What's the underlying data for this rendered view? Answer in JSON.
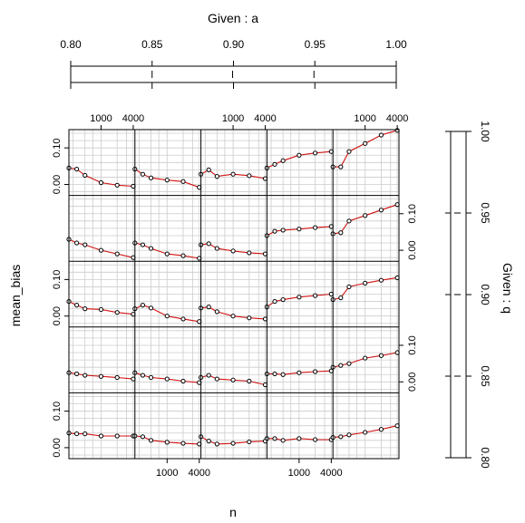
{
  "chart_data": {
    "type": "line",
    "given_a": {
      "label": "Given : a",
      "ticks": [
        0.8,
        0.85,
        0.9,
        0.95,
        1.0
      ],
      "tick_labels": [
        "0.80",
        "0.85",
        "0.90",
        "0.95",
        "1.00"
      ]
    },
    "given_q": {
      "label": "Given : q",
      "ticks": [
        0.8,
        0.85,
        0.9,
        0.95,
        1.0
      ],
      "tick_labels": [
        "0.80",
        "0.85",
        "0.90",
        "0.95",
        "1.00"
      ]
    },
    "xlabel": "n",
    "ylabel": "mean_bias",
    "x_scale": "log",
    "xlim": [
      250,
      4300
    ],
    "ylim": [
      -0.03,
      0.15
    ],
    "x_ticks": [
      1000,
      4000
    ],
    "x_tick_labels": [
      "1000",
      "4000"
    ],
    "y_ticks": [
      0.0,
      0.1
    ],
    "y_tick_labels": [
      "0.00",
      "0.10"
    ],
    "n": [
      250,
      350,
      500,
      1000,
      2000,
      4000
    ],
    "rows": [
      {
        "q_row": 1,
        "panels": [
          [
            0.045,
            0.042,
            0.025,
            0.005,
            -0.002,
            -0.005
          ],
          [
            0.042,
            0.028,
            0.018,
            0.012,
            0.008,
            -0.008
          ],
          [
            0.028,
            0.04,
            0.022,
            0.028,
            0.024,
            0.016
          ],
          [
            0.045,
            0.055,
            0.065,
            0.08,
            0.086,
            0.09
          ],
          [
            0.048,
            0.048,
            0.09,
            0.112,
            0.135,
            0.148
          ]
        ]
      },
      {
        "q_row": 2,
        "panels": [
          [
            0.03,
            0.02,
            0.015,
            0.0,
            -0.01,
            -0.02
          ],
          [
            0.02,
            0.015,
            0.005,
            -0.01,
            -0.015,
            -0.022
          ],
          [
            0.015,
            0.018,
            0.005,
            -0.002,
            -0.007,
            -0.01
          ],
          [
            0.04,
            0.052,
            0.055,
            0.058,
            0.062,
            0.065
          ],
          [
            0.045,
            0.048,
            0.08,
            0.095,
            0.11,
            0.125
          ]
        ]
      },
      {
        "q_row": 3,
        "panels": [
          [
            0.04,
            0.03,
            0.02,
            0.018,
            0.01,
            0.005
          ],
          [
            0.02,
            0.03,
            0.022,
            0.0,
            -0.008,
            -0.015
          ],
          [
            0.022,
            0.025,
            0.012,
            0.0,
            -0.005,
            -0.008
          ],
          [
            0.025,
            0.04,
            0.045,
            0.052,
            0.056,
            0.06
          ],
          [
            0.045,
            0.05,
            0.08,
            0.09,
            0.098,
            0.105
          ]
        ]
      },
      {
        "q_row": 4,
        "panels": [
          [
            0.025,
            0.022,
            0.018,
            0.015,
            0.012,
            0.008
          ],
          [
            0.025,
            0.018,
            0.012,
            0.008,
            0.002,
            -0.002
          ],
          [
            0.012,
            0.018,
            0.008,
            0.005,
            0.002,
            -0.008
          ],
          [
            0.022,
            0.022,
            0.02,
            0.025,
            0.028,
            0.03
          ],
          [
            0.04,
            0.045,
            0.05,
            0.065,
            0.072,
            0.08
          ]
        ]
      },
      {
        "q_row": 5,
        "panels": [
          [
            0.04,
            0.038,
            0.038,
            0.032,
            0.032,
            0.032
          ],
          [
            0.032,
            0.03,
            0.02,
            0.015,
            0.012,
            0.01
          ],
          [
            0.03,
            0.018,
            0.01,
            0.012,
            0.016,
            0.018
          ],
          [
            0.025,
            0.025,
            0.02,
            0.025,
            0.022,
            0.022
          ],
          [
            0.028,
            0.03,
            0.035,
            0.042,
            0.05,
            0.06
          ]
        ]
      }
    ],
    "colors": {
      "line": "#d01010",
      "point": "#000000",
      "grid": "#cccccc",
      "frame": "#000000"
    }
  }
}
